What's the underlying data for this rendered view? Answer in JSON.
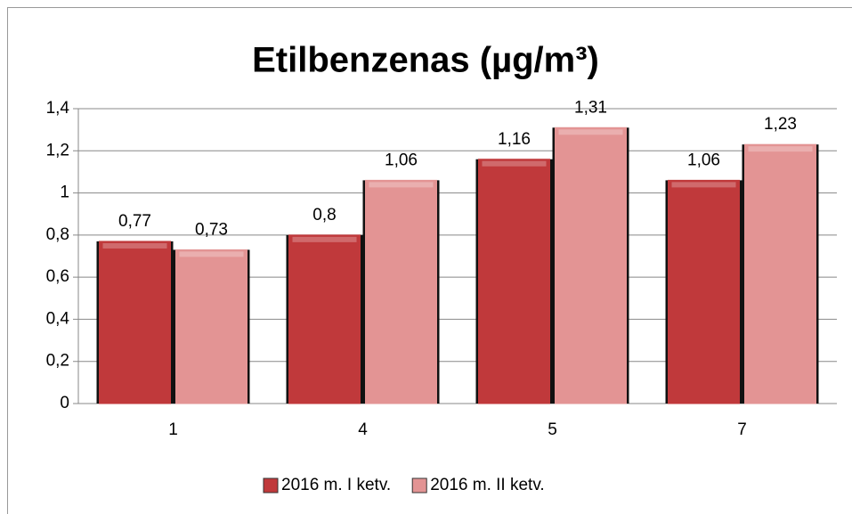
{
  "chart_data": {
    "type": "bar",
    "title": "Etilbenzenas (µg/m³)",
    "categories": [
      "1",
      "4",
      "5",
      "7"
    ],
    "series": [
      {
        "name": "2016 m. I ketv.",
        "color": "#c0393b",
        "values": [
          0.77,
          0.8,
          1.16,
          1.06
        ],
        "value_labels": [
          "0,77",
          "0,8",
          "1,16",
          "1,06"
        ]
      },
      {
        "name": "2016 m. II ketv.",
        "color": "#e39494",
        "values": [
          0.73,
          1.06,
          1.31,
          1.23
        ],
        "value_labels": [
          "0,73",
          "1,06",
          "1,31",
          "1,23"
        ]
      }
    ],
    "ylim": [
      0,
      1.4
    ],
    "yticks": [
      0,
      {
        "value": 0.2,
        "label": "0,2"
      },
      {
        "value": 0.4,
        "label": "0,4"
      },
      {
        "value": 0.6,
        "label": "0,6"
      },
      {
        "value": 0.8,
        "label": "0,8"
      },
      1,
      {
        "value": 1.2,
        "label": "1,2"
      },
      {
        "value": 1.4,
        "label": "1,4"
      }
    ],
    "grid": true,
    "legend": "bottom"
  }
}
